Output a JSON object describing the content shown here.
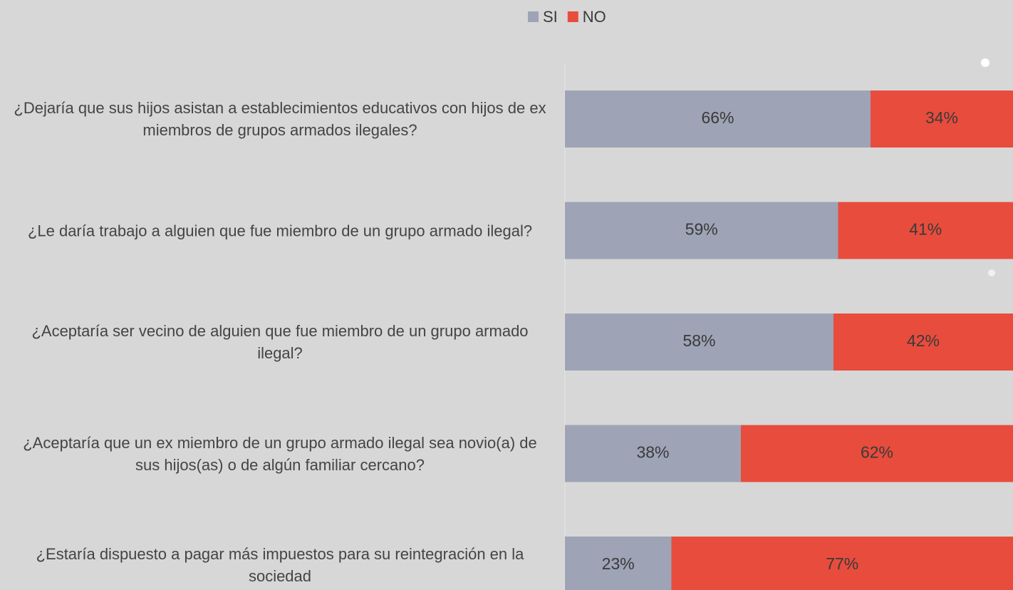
{
  "chart_data": {
    "type": "stacked-bar-horizontal",
    "categories": [
      "¿Dejaría que sus hijos asistan a establecimientos educativos con hijos de ex miembros de grupos armados ilegales?",
      "¿Le daría trabajo a alguien que fue miembro de un grupo armado ilegal?",
      "¿Aceptaría ser vecino de alguien que fue miembro de un grupo armado ilegal?",
      "¿Aceptaría que un ex miembro de un grupo armado ilegal sea novio(a) de sus hijos(as) o de algún familiar cercano?",
      "¿Estaría dispuesto a pagar más impuestos para su reintegración en la sociedad"
    ],
    "series": [
      {
        "name": "SI",
        "color": "#9ea3b5",
        "values": [
          66,
          59,
          58,
          38,
          23
        ],
        "value_labels": [
          "66%",
          "59%",
          "58%",
          "38%",
          "23%"
        ]
      },
      {
        "name": "NO",
        "color": "#e84c3d",
        "values": [
          34,
          41,
          42,
          62,
          77
        ],
        "value_labels": [
          "34%",
          "41%",
          "42%",
          "62%",
          "77%"
        ]
      }
    ],
    "xlim": [
      0,
      100
    ],
    "legend": "top"
  }
}
